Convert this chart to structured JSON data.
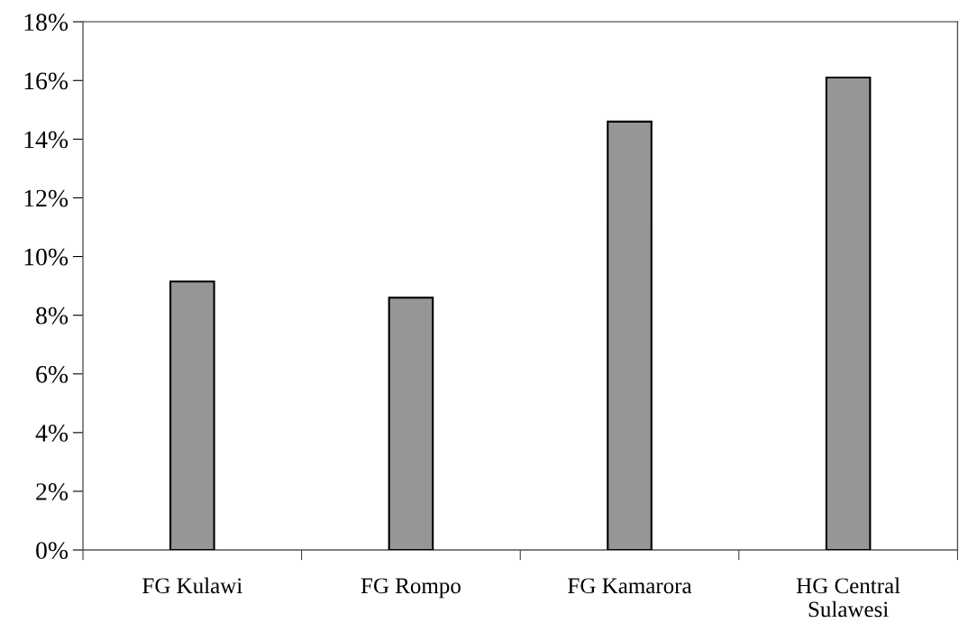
{
  "chart_data": {
    "type": "bar",
    "categories": [
      "FG Kulawi",
      "FG Rompo",
      "FG Kamarora",
      "HG Central\nSulawesi"
    ],
    "values": [
      9.15,
      8.6,
      14.6,
      16.1
    ],
    "color": "#969696",
    "ylim": [
      0,
      18
    ],
    "yticks": [
      {
        "value": 0,
        "label": "0%"
      },
      {
        "value": 2,
        "label": "2%"
      },
      {
        "value": 4,
        "label": "4%"
      },
      {
        "value": 6,
        "label": "6%"
      },
      {
        "value": 8,
        "label": "8%"
      },
      {
        "value": 10,
        "label": "10%"
      },
      {
        "value": 12,
        "label": "12%"
      },
      {
        "value": 14,
        "label": "14%"
      },
      {
        "value": 16,
        "label": "16%"
      },
      {
        "value": 18,
        "label": "18%"
      }
    ],
    "grid": false
  }
}
